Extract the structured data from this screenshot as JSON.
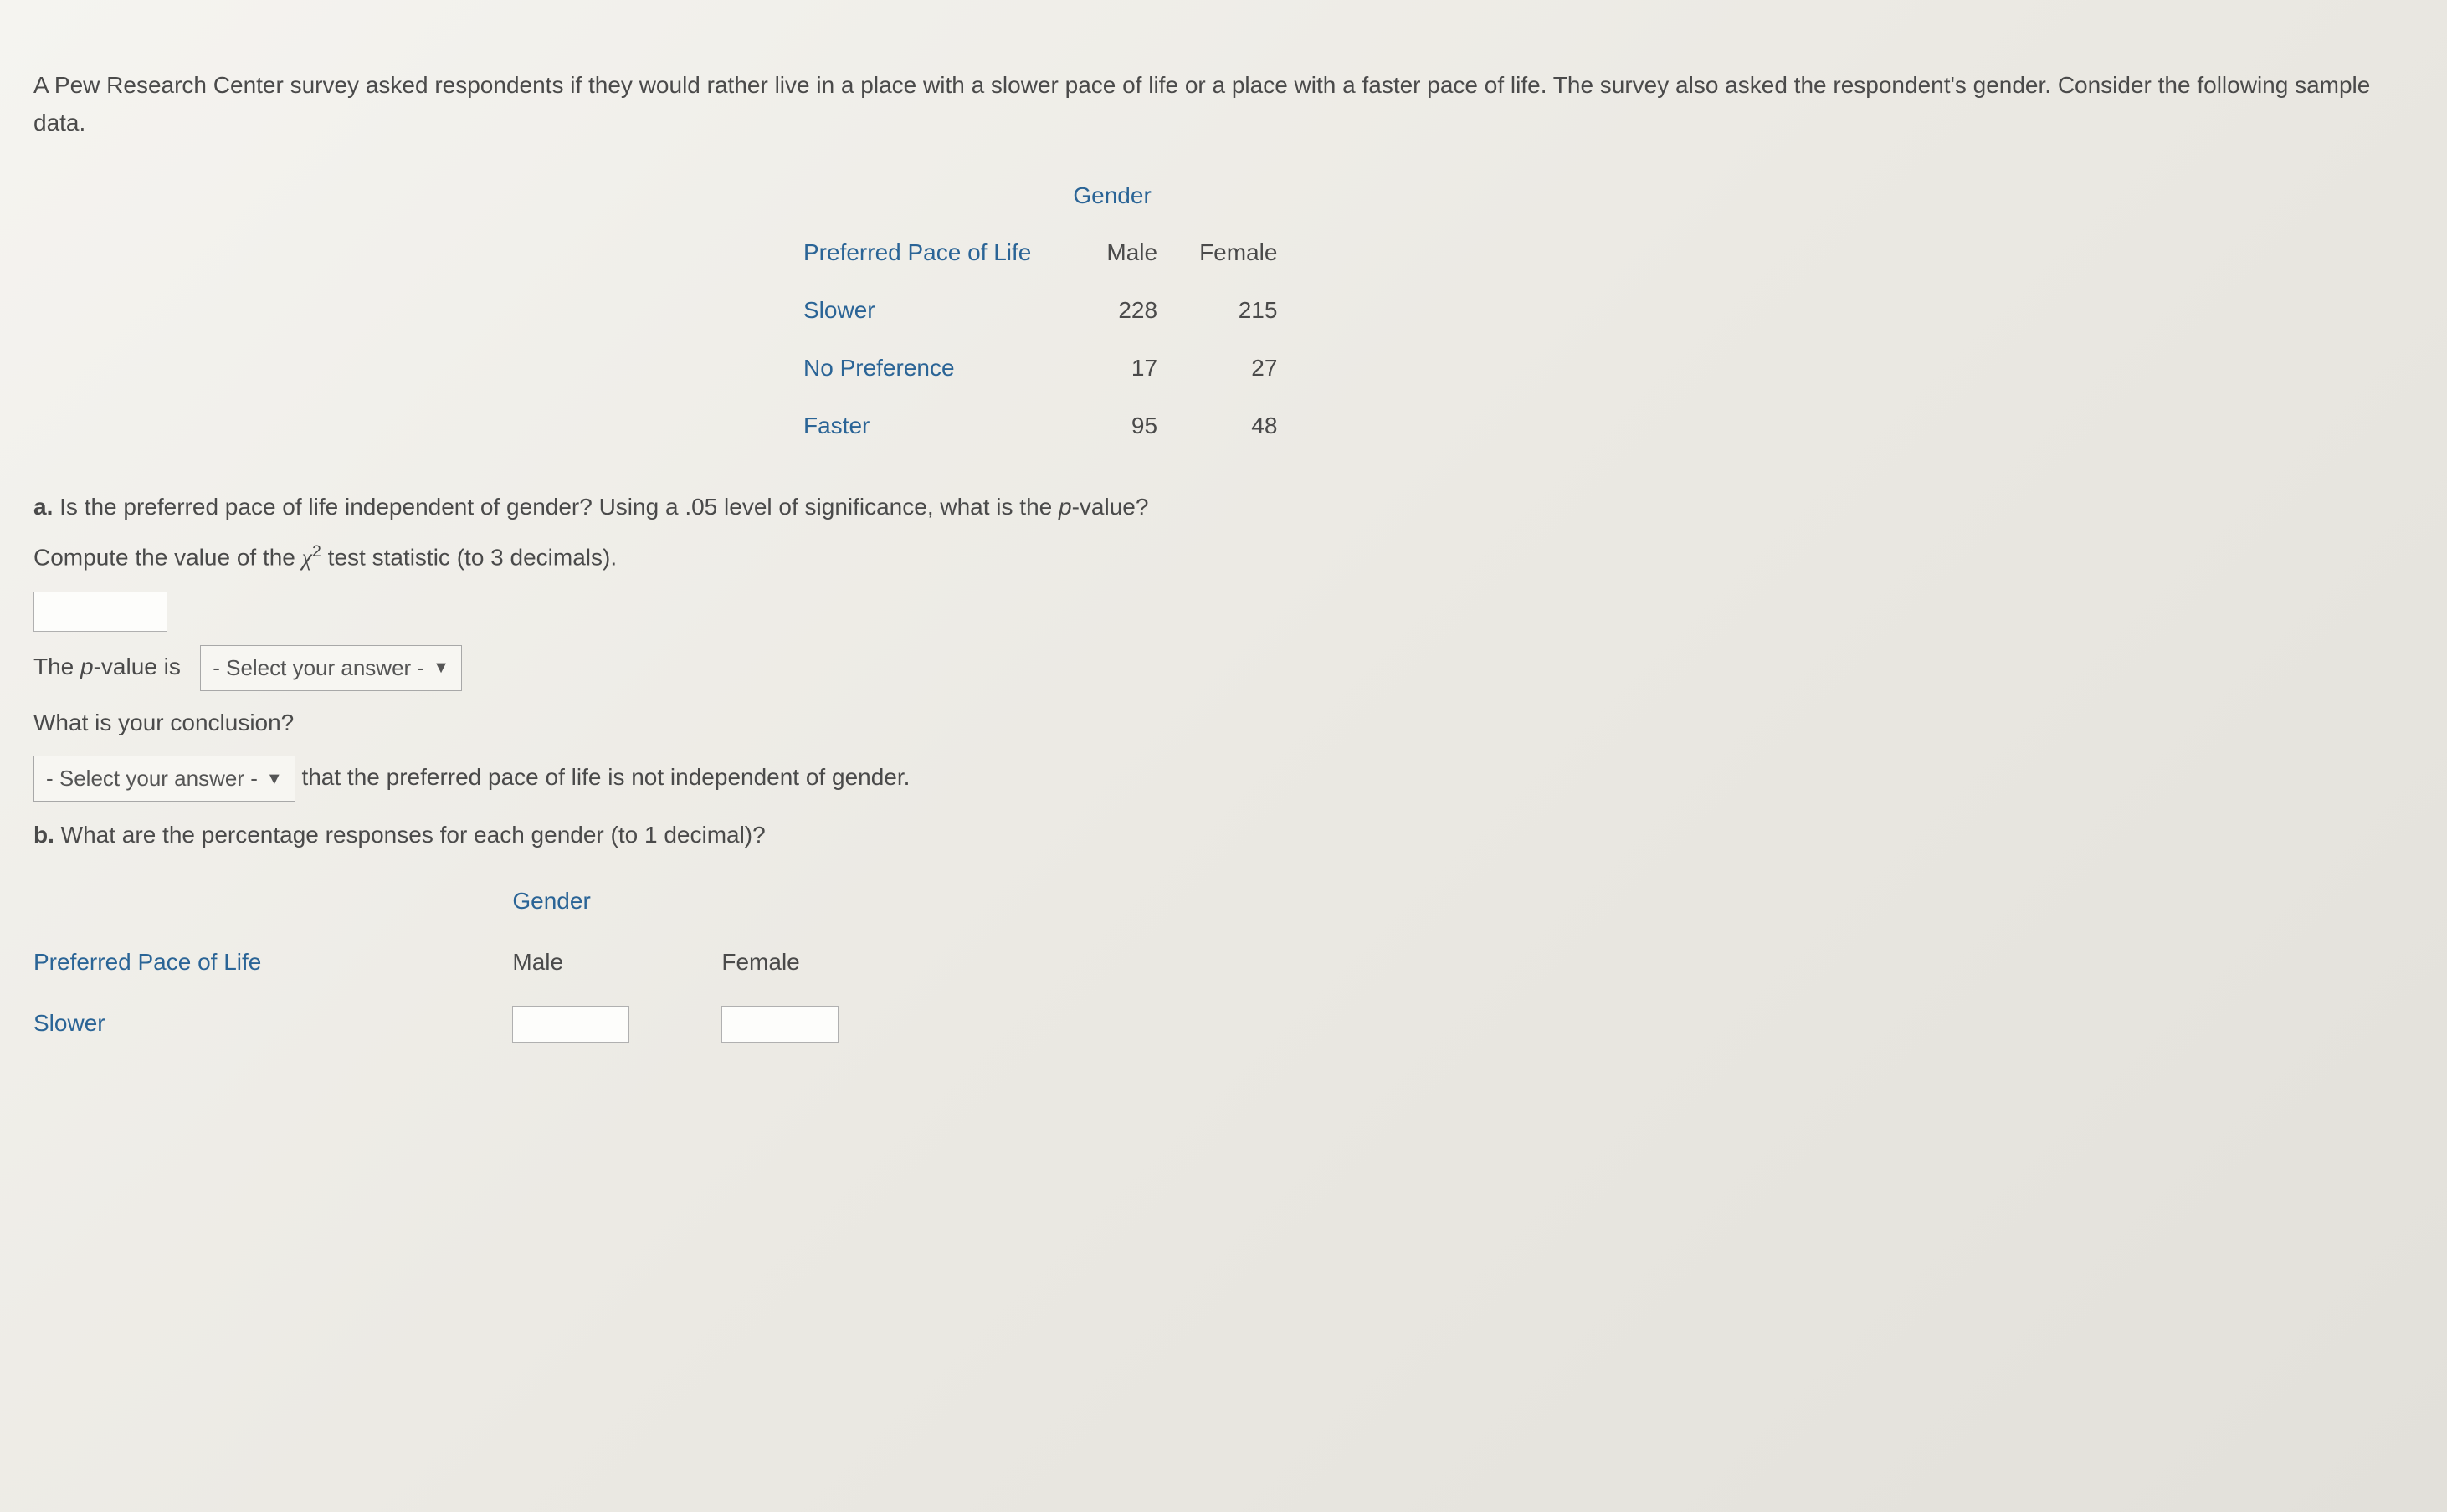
{
  "intro": "A Pew Research Center survey asked respondents if they would rather live in a place with a slower pace of life or a place with a faster pace of life. The survey also asked the respondent's gender. Consider the following sample data.",
  "table1": {
    "super_header": "Gender",
    "row_header": "Preferred Pace of Life",
    "col_headers": [
      "Male",
      "Female"
    ],
    "rows": [
      {
        "label": "Slower",
        "vals": [
          "228",
          "215"
        ]
      },
      {
        "label": "No Preference",
        "vals": [
          "17",
          "27"
        ]
      },
      {
        "label": "Faster",
        "vals": [
          "95",
          "48"
        ]
      }
    ]
  },
  "qa": {
    "label": "a.",
    "text1": " Is the preferred pace of life independent of gender? Using a ",
    "alpha": ".05",
    "text2": " level of significance, what is the ",
    "pval_word": "p",
    "text3": "-value?",
    "compute_pre": "Compute the value of the ",
    "compute_post": " test statistic (to 3 decimals).",
    "pvalue_line_pre": "The ",
    "pvalue_line_post": "-value is",
    "select_placeholder": "- Select your answer -",
    "conclusion_q": "What is your conclusion?",
    "conclusion_post": " that the preferred pace of life is not independent of gender."
  },
  "qb": {
    "label": "b.",
    "text": " What are the percentage responses for each gender (to 1 decimal)?"
  },
  "table2": {
    "super_header": "Gender",
    "row_header": "Preferred Pace of Life",
    "col_headers": [
      "Male",
      "Female"
    ],
    "rows": [
      {
        "label": "Slower"
      }
    ]
  },
  "colors": {
    "heading": "#2a6496",
    "text": "#4a4a4a"
  }
}
